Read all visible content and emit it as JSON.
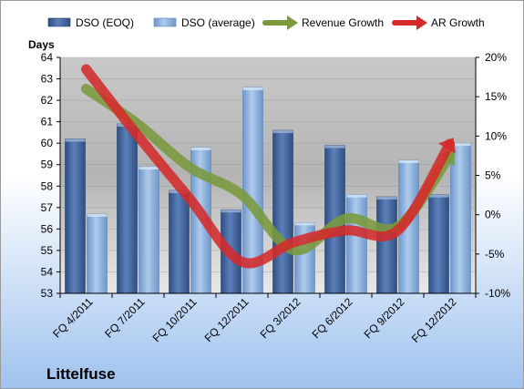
{
  "company": "Littelfuse",
  "colors": {
    "dso_eoq": "#4a6fa8",
    "dso_avg": "#8fb4dd",
    "revenue_growth": "#7a9a3c",
    "ar_growth": "#d42a2a",
    "plot_bg": "#bfbfbf",
    "page_bg_top": "#ffffff",
    "page_bg_bottom": "#9fc2ee"
  },
  "chart_data": {
    "type": "bar",
    "categories": [
      "FQ 4/2011",
      "FQ 7/2011",
      "FQ 10/2011",
      "FQ 12/2011",
      "FQ 3/2012",
      "FQ 6/2012",
      "FQ 9/2012",
      "FQ 12/2012"
    ],
    "series": [
      {
        "name": "DSO (EOQ)",
        "kind": "bar",
        "axis": "left",
        "values": [
          60.2,
          60.9,
          57.8,
          56.9,
          60.6,
          59.9,
          57.5,
          57.6
        ]
      },
      {
        "name": "DSO (average)",
        "kind": "bar",
        "axis": "left",
        "values": [
          56.7,
          58.9,
          59.8,
          62.6,
          56.3,
          57.6,
          59.2,
          60.0
        ]
      },
      {
        "name": "Revenue Growth",
        "kind": "line",
        "axis": "right",
        "values": [
          16.0,
          11.5,
          6.0,
          2.5,
          -4.5,
          -0.5,
          -1.5,
          7.5
        ]
      },
      {
        "name": "AR Growth",
        "kind": "line",
        "axis": "right",
        "values": [
          18.5,
          10.0,
          2.0,
          -6.0,
          -3.5,
          -2.0,
          -2.0,
          9.0
        ]
      }
    ],
    "ylabel": "Days",
    "ylim": [
      53,
      64
    ],
    "yticks": [
      "53",
      "54",
      "55",
      "56",
      "57",
      "58",
      "59",
      "60",
      "61",
      "62",
      "63",
      "64"
    ],
    "y2lim": [
      -10,
      20
    ],
    "y2ticks": [
      "-10%",
      "-5%",
      "0%",
      "5%",
      "10%",
      "15%",
      "20%"
    ],
    "legend": {
      "placement": "top"
    }
  }
}
